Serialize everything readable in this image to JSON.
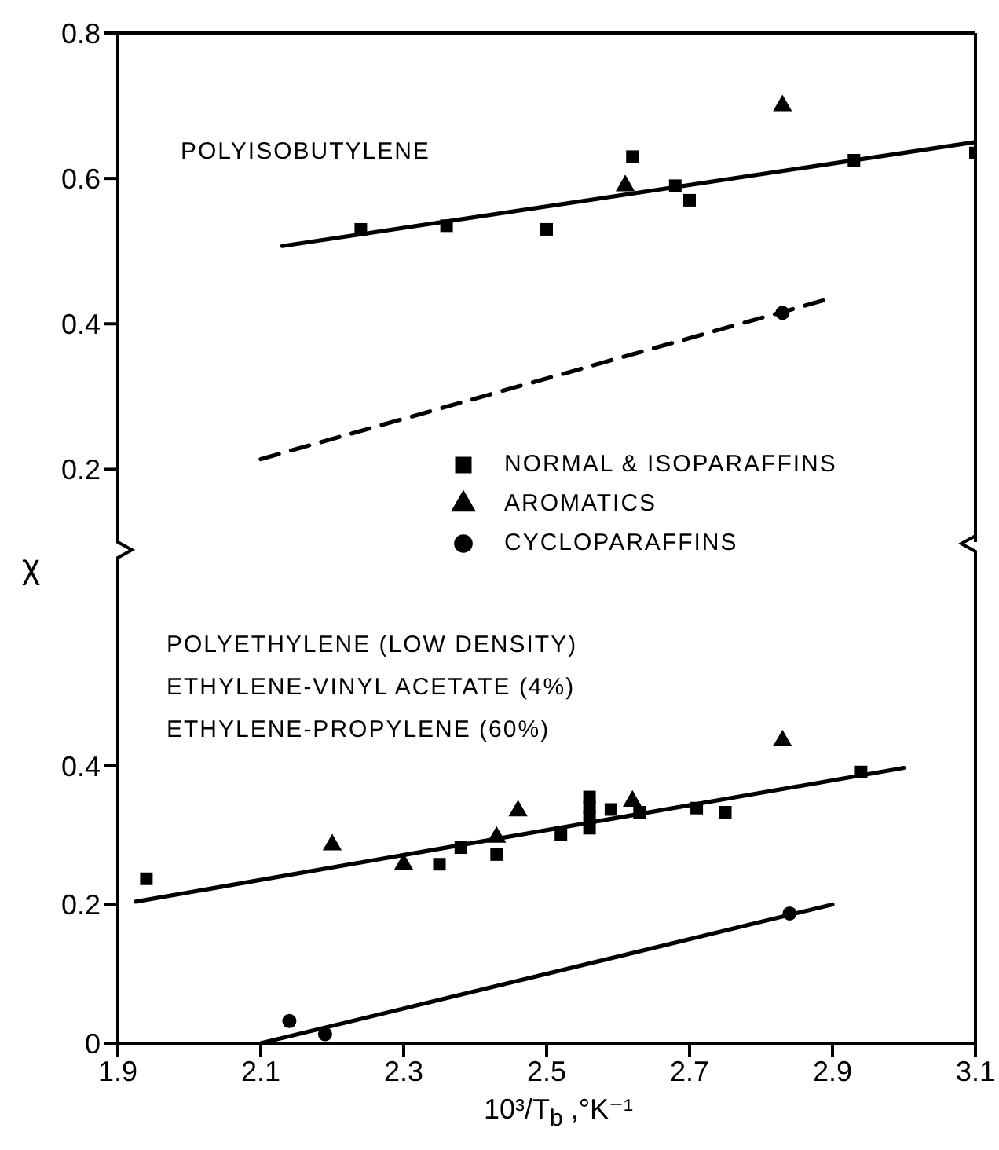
{
  "chart_data": [
    {
      "type": "scatter",
      "xlim": [
        1.9,
        3.1
      ],
      "xticks": [
        1.9,
        2.1,
        2.3,
        2.5,
        2.7,
        2.9,
        3.1
      ],
      "ylim": [
        0.1,
        0.8
      ],
      "yticks": [
        0.2,
        0.4,
        0.6,
        0.8
      ],
      "tick_labels": "y",
      "legend": "bottom",
      "annotations": [
        "POLYISOBUTYLENE"
      ],
      "series": [
        {
          "name": "NORMAL & ISOPARAFFINS",
          "marker": "square",
          "color": "#000000",
          "x": [
            2.24,
            2.36,
            2.5,
            2.62,
            2.68,
            2.7,
            2.93,
            3.1
          ],
          "values": [
            0.53,
            0.535,
            0.53,
            0.63,
            0.59,
            0.57,
            0.625,
            0.635
          ]
        },
        {
          "name": "AROMATICS",
          "marker": "triangle",
          "color": "#000000",
          "x": [
            2.61,
            2.83
          ],
          "values": [
            0.59,
            0.7
          ]
        },
        {
          "name": "CYCLOPARAFFINS",
          "marker": "circle",
          "color": "#000000",
          "x": [
            2.83
          ],
          "values": [
            0.415
          ]
        },
        {
          "type": "line",
          "marker": "none",
          "line_style": "solid",
          "color": "#000000",
          "x": [
            2.13,
            3.1
          ],
          "values": [
            0.507,
            0.65
          ]
        },
        {
          "type": "line",
          "marker": "none",
          "line_style": "dashed",
          "color": "#000000",
          "x": [
            2.1,
            2.89
          ],
          "values": [
            0.214,
            0.433
          ]
        }
      ]
    },
    {
      "type": "scatter",
      "xlabel": "10³/T$_{b}$ ,°K⁻¹",
      "ylabel": "χ",
      "xlim": [
        1.9,
        3.1
      ],
      "xticks": [
        1.9,
        2.1,
        2.3,
        2.5,
        2.7,
        2.9,
        3.1
      ],
      "ylim": [
        0,
        0.7
      ],
      "yticks": [
        0,
        0.2,
        0.4
      ],
      "annotations": [
        "POLYETHYLENE (LOW DENSITY)",
        "ETHYLENE-VINYL ACETATE (4%)",
        "ETHYLENE-PROPYLENE (60%)"
      ],
      "series": [
        {
          "marker": "square",
          "color": "#000000",
          "x": [
            1.94,
            2.35,
            2.38,
            2.43,
            2.52,
            2.56,
            2.56,
            2.56,
            2.56,
            2.59,
            2.63,
            2.71,
            2.75,
            2.94
          ],
          "values": [
            0.237,
            0.258,
            0.282,
            0.272,
            0.301,
            0.355,
            0.34,
            0.325,
            0.31,
            0.337,
            0.333,
            0.339,
            0.333,
            0.391
          ]
        },
        {
          "marker": "triangle",
          "color": "#000000",
          "x": [
            2.2,
            2.3,
            2.43,
            2.46,
            2.62,
            2.83
          ],
          "values": [
            0.286,
            0.258,
            0.297,
            0.335,
            0.349,
            0.436
          ]
        },
        {
          "marker": "circle",
          "color": "#000000",
          "x": [
            2.14,
            2.19,
            2.84
          ],
          "values": [
            0.032,
            0.013,
            0.187
          ]
        },
        {
          "type": "line",
          "marker": "none",
          "line_style": "solid",
          "color": "#000000",
          "x": [
            1.925,
            3.0
          ],
          "values": [
            0.204,
            0.397
          ]
        },
        {
          "type": "line",
          "marker": "none",
          "line_style": "solid",
          "color": "#000000",
          "x": [
            2.1,
            2.9
          ],
          "values": [
            0,
            0.2
          ]
        }
      ]
    }
  ]
}
